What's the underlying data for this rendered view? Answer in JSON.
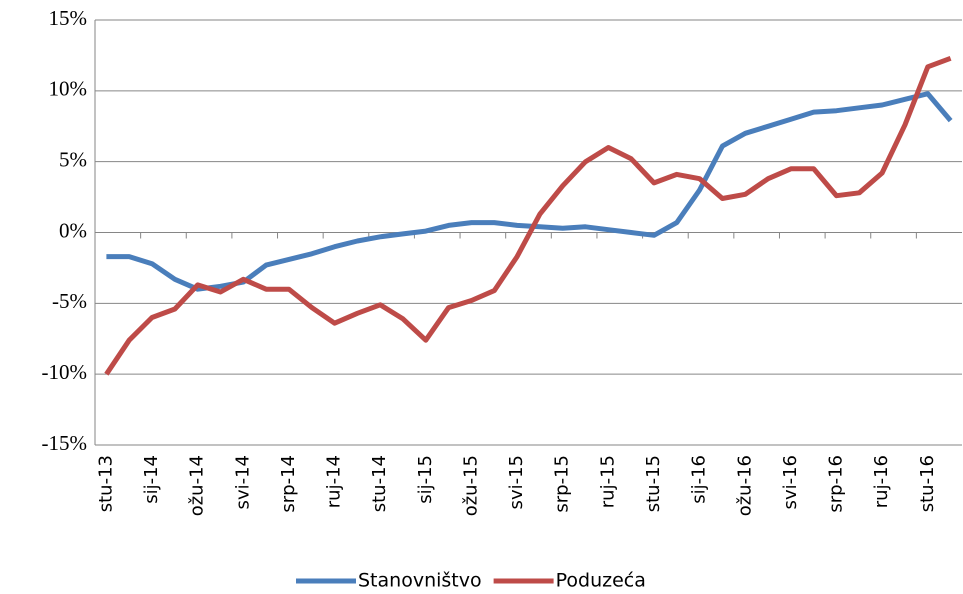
{
  "chart_data": {
    "type": "line",
    "categories": [
      "stu-13",
      null,
      "sij-14",
      null,
      "ožu-14",
      null,
      "svi-14",
      null,
      "srp-14",
      null,
      "ruj-14",
      null,
      "stu-14",
      null,
      "sij-15",
      null,
      "ožu-15",
      null,
      "svi-15",
      null,
      "srp-15",
      null,
      "ruj-15",
      null,
      "stu-15",
      null,
      "sij-16",
      null,
      "ožu-16",
      null,
      "svi-16",
      null,
      "srp-16",
      null,
      "ruj-16",
      null,
      "stu-16",
      null
    ],
    "series": [
      {
        "name": "Stanovništvo",
        "color": "#4a7ebb",
        "values": [
          -1.7,
          -1.7,
          -2.2,
          -3.3,
          -4.0,
          -3.8,
          -3.5,
          -2.3,
          -1.9,
          -1.5,
          -1.0,
          -0.6,
          -0.3,
          -0.1,
          0.1,
          0.5,
          0.7,
          0.7,
          0.5,
          0.4,
          0.3,
          0.4,
          0.2,
          0.0,
          -0.2,
          0.7,
          3.0,
          6.1,
          7.0,
          7.5,
          8.0,
          8.5,
          8.6,
          8.8,
          9.0,
          9.4,
          9.8,
          7.9
        ]
      },
      {
        "name": "Poduzeća",
        "color": "#be4b48",
        "values": [
          -10.0,
          -7.6,
          -6.0,
          -5.4,
          -3.7,
          -4.2,
          -3.3,
          -4.0,
          -4.0,
          -5.3,
          -6.4,
          -5.7,
          -5.1,
          -6.1,
          -7.6,
          -5.3,
          -4.8,
          -4.1,
          -1.7,
          1.3,
          3.3,
          5.0,
          6.0,
          5.2,
          3.5,
          4.1,
          3.8,
          2.4,
          2.7,
          3.8,
          4.5,
          4.5,
          2.6,
          2.8,
          4.2,
          7.6,
          11.7,
          12.3
        ]
      }
    ],
    "ylim": [
      -15,
      15
    ],
    "yticks": [
      {
        "value": -15,
        "label": "-15%"
      },
      {
        "value": -10,
        "label": "-10%"
      },
      {
        "value": -5,
        "label": "-5%"
      },
      {
        "value": 0,
        "label": "0%"
      },
      {
        "value": 5,
        "label": "5%"
      },
      {
        "value": 10,
        "label": "10%"
      },
      {
        "value": 15,
        "label": "15%"
      }
    ],
    "grid": true,
    "legend": "bottom"
  }
}
